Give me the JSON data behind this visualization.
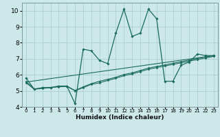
{
  "xlabel": "Humidex (Indice chaleur)",
  "bg_color": "#cce8e8",
  "grid_color": "#aacfcf",
  "line_color": "#1a6b5a",
  "xlim": [
    -0.5,
    23.5
  ],
  "ylim": [
    4,
    10.5
  ],
  "xticks": [
    0,
    1,
    2,
    3,
    4,
    5,
    6,
    7,
    8,
    9,
    10,
    11,
    12,
    13,
    14,
    15,
    16,
    17,
    18,
    19,
    20,
    21,
    22,
    23
  ],
  "yticks": [
    4,
    5,
    6,
    7,
    8,
    9,
    10
  ],
  "series1_x": [
    0,
    1,
    2,
    3,
    4,
    5,
    6,
    7,
    8,
    9,
    10,
    11,
    12,
    13,
    14,
    15,
    16,
    17,
    18,
    19,
    20,
    21,
    22,
    23
  ],
  "series1_y": [
    5.8,
    5.1,
    5.2,
    5.2,
    5.3,
    5.3,
    4.2,
    7.6,
    7.5,
    6.9,
    6.7,
    8.6,
    10.1,
    8.4,
    8.6,
    10.1,
    9.5,
    5.6,
    5.6,
    6.6,
    6.8,
    7.3,
    7.2,
    7.2
  ],
  "series2_x": [
    0,
    1,
    2,
    3,
    4,
    5,
    6,
    7,
    8,
    9,
    10,
    11,
    12,
    13,
    14,
    15,
    16,
    17,
    18,
    19,
    20,
    21,
    22,
    23
  ],
  "series2_y": [
    5.5,
    5.1,
    5.15,
    5.2,
    5.25,
    5.28,
    5.0,
    5.2,
    5.4,
    5.5,
    5.65,
    5.78,
    5.95,
    6.05,
    6.2,
    6.35,
    6.45,
    6.55,
    6.65,
    6.75,
    6.85,
    6.95,
    7.05,
    7.15
  ],
  "series3_x": [
    0,
    1,
    2,
    3,
    4,
    5,
    6,
    7,
    8,
    9,
    10,
    11,
    12,
    13,
    14,
    15,
    16,
    17,
    18,
    19,
    20,
    21,
    22,
    23
  ],
  "series3_y": [
    5.58,
    5.12,
    5.18,
    5.21,
    5.28,
    5.3,
    5.02,
    5.25,
    5.45,
    5.6,
    5.72,
    5.85,
    6.02,
    6.12,
    6.27,
    6.42,
    6.52,
    6.62,
    6.72,
    6.82,
    6.92,
    7.02,
    7.12,
    7.2
  ],
  "series4_x": [
    0,
    23
  ],
  "series4_y": [
    5.55,
    7.2
  ]
}
